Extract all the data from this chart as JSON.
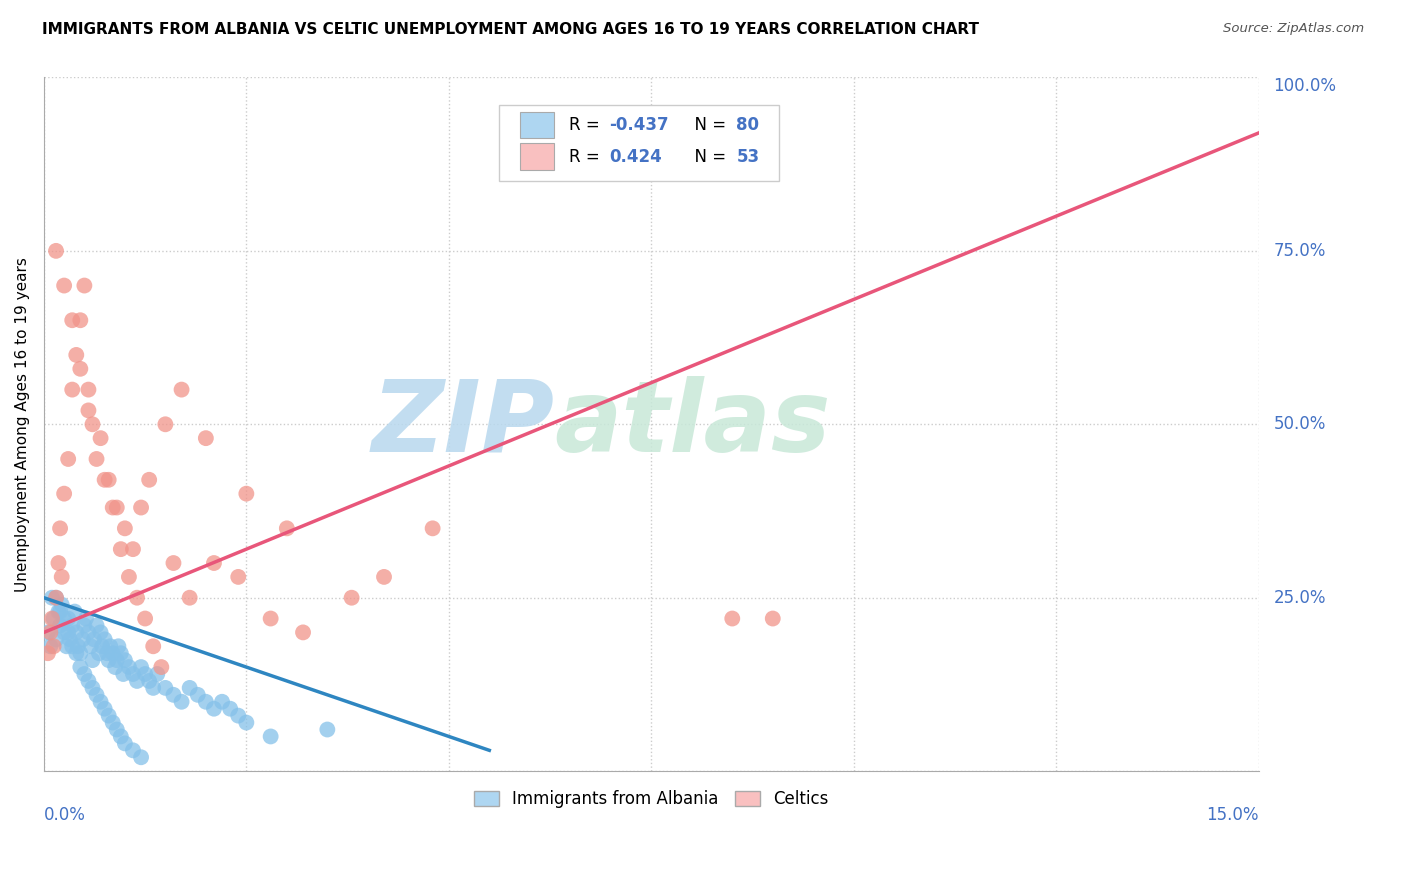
{
  "title": "IMMIGRANTS FROM ALBANIA VS CELTIC UNEMPLOYMENT AMONG AGES 16 TO 19 YEARS CORRELATION CHART",
  "source": "Source: ZipAtlas.com",
  "ylabel": "Unemployment Among Ages 16 to 19 years",
  "xlim": [
    0.0,
    15.0
  ],
  "ylim": [
    0.0,
    100.0
  ],
  "blue_color": "#85c1e9",
  "pink_color": "#f1948a",
  "blue_fill": "#aed6f1",
  "pink_fill": "#f9c0c0",
  "trend_blue": "#2e86c1",
  "trend_pink": "#e8567a",
  "watermark_color": "#d0eaf8",
  "title_fontsize": 11,
  "watermark": "ZIPatlas",
  "blue_scatter_x": [
    0.05,
    0.08,
    0.1,
    0.12,
    0.15,
    0.18,
    0.2,
    0.22,
    0.25,
    0.28,
    0.3,
    0.32,
    0.35,
    0.38,
    0.4,
    0.42,
    0.45,
    0.48,
    0.5,
    0.52,
    0.55,
    0.58,
    0.6,
    0.62,
    0.65,
    0.68,
    0.7,
    0.72,
    0.75,
    0.78,
    0.8,
    0.82,
    0.85,
    0.88,
    0.9,
    0.92,
    0.95,
    0.98,
    1.0,
    1.05,
    1.1,
    1.15,
    1.2,
    1.25,
    1.3,
    1.35,
    1.4,
    1.5,
    1.6,
    1.7,
    1.8,
    1.9,
    2.0,
    2.1,
    2.2,
    2.3,
    2.4,
    2.5,
    0.15,
    0.2,
    0.25,
    0.3,
    0.35,
    0.4,
    0.45,
    0.5,
    0.55,
    0.6,
    0.65,
    0.7,
    0.75,
    0.8,
    0.85,
    0.9,
    0.95,
    1.0,
    1.1,
    1.2,
    2.8,
    3.5
  ],
  "blue_scatter_y": [
    20,
    18,
    25,
    22,
    19,
    23,
    21,
    24,
    20,
    18,
    22,
    19,
    21,
    23,
    20,
    18,
    17,
    19,
    21,
    22,
    20,
    18,
    16,
    19,
    21,
    17,
    20,
    18,
    19,
    17,
    16,
    18,
    17,
    15,
    16,
    18,
    17,
    14,
    16,
    15,
    14,
    13,
    15,
    14,
    13,
    12,
    14,
    12,
    11,
    10,
    12,
    11,
    10,
    9,
    10,
    9,
    8,
    7,
    25,
    23,
    22,
    20,
    18,
    17,
    15,
    14,
    13,
    12,
    11,
    10,
    9,
    8,
    7,
    6,
    5,
    4,
    3,
    2,
    5,
    6
  ],
  "pink_scatter_x": [
    0.05,
    0.08,
    0.1,
    0.12,
    0.15,
    0.18,
    0.2,
    0.22,
    0.25,
    0.3,
    0.35,
    0.4,
    0.45,
    0.5,
    0.55,
    0.6,
    0.7,
    0.8,
    0.9,
    1.0,
    1.1,
    1.2,
    1.3,
    1.5,
    1.7,
    2.0,
    2.5,
    3.0,
    0.15,
    0.25,
    0.35,
    0.45,
    0.55,
    0.65,
    0.75,
    0.85,
    0.95,
    1.05,
    1.15,
    1.25,
    1.35,
    1.45,
    1.6,
    1.8,
    2.1,
    2.4,
    2.8,
    3.2,
    3.8,
    4.2,
    8.5,
    9.0,
    4.8
  ],
  "pink_scatter_y": [
    17,
    20,
    22,
    18,
    25,
    30,
    35,
    28,
    40,
    45,
    55,
    60,
    65,
    70,
    55,
    50,
    48,
    42,
    38,
    35,
    32,
    38,
    42,
    50,
    55,
    48,
    40,
    35,
    75,
    70,
    65,
    58,
    52,
    45,
    42,
    38,
    32,
    28,
    25,
    22,
    18,
    15,
    30,
    25,
    30,
    28,
    22,
    20,
    25,
    28,
    22,
    22,
    35
  ],
  "blue_trend_x0": 0.0,
  "blue_trend_y0": 25.0,
  "blue_trend_x1": 5.5,
  "blue_trend_y1": 3.0,
  "pink_trend_x0": 0.0,
  "pink_trend_y0": 20.0,
  "pink_trend_x1": 15.0,
  "pink_trend_y1": 92.0
}
